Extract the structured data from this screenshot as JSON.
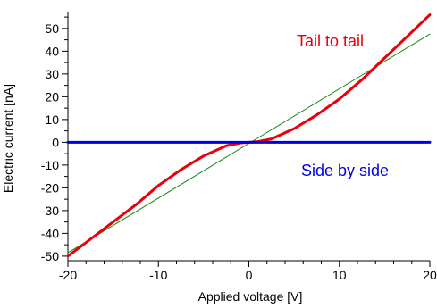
{
  "chart_data": {
    "type": "line",
    "title": "",
    "xlabel": "Applied voltage [V]",
    "ylabel": "Electric current [nA]",
    "xlim": [
      -20,
      20
    ],
    "ylim": [
      -52,
      57
    ],
    "x_ticks": [
      -20,
      -10,
      0,
      10,
      20
    ],
    "x_tick_labels": [
      "-20",
      "-10",
      "0",
      "10",
      "20"
    ],
    "y_ticks": [
      -50,
      -40,
      -30,
      -20,
      -10,
      0,
      10,
      20,
      30,
      40,
      50
    ],
    "y_tick_labels": [
      "-50",
      "-40",
      "-30",
      "-20",
      "-10",
      "0",
      "10",
      "20",
      "30",
      "40",
      "50"
    ],
    "grid": false,
    "series": [
      {
        "name": "Tail to tail",
        "color": "#e8000b",
        "x": [
          -20,
          -17.5,
          -15,
          -12.5,
          -10,
          -7.5,
          -5,
          -2.5,
          -1,
          0,
          1,
          2.5,
          5,
          7.5,
          10,
          12.5,
          15,
          17.5,
          20
        ],
        "y": [
          -50,
          -42.5,
          -35,
          -27.5,
          -19,
          -12,
          -6,
          -1.5,
          -0.3,
          0,
          0.3,
          1.5,
          6,
          12,
          19,
          27.5,
          37,
          46.5,
          56
        ]
      },
      {
        "name": "",
        "color": "#1a8a1a",
        "x": [
          -20,
          20
        ],
        "y": [
          -48.5,
          47.5
        ]
      },
      {
        "name": "Side by side",
        "color": "#0000e6",
        "x": [
          -20,
          20
        ],
        "y": [
          0,
          0
        ]
      }
    ]
  }
}
